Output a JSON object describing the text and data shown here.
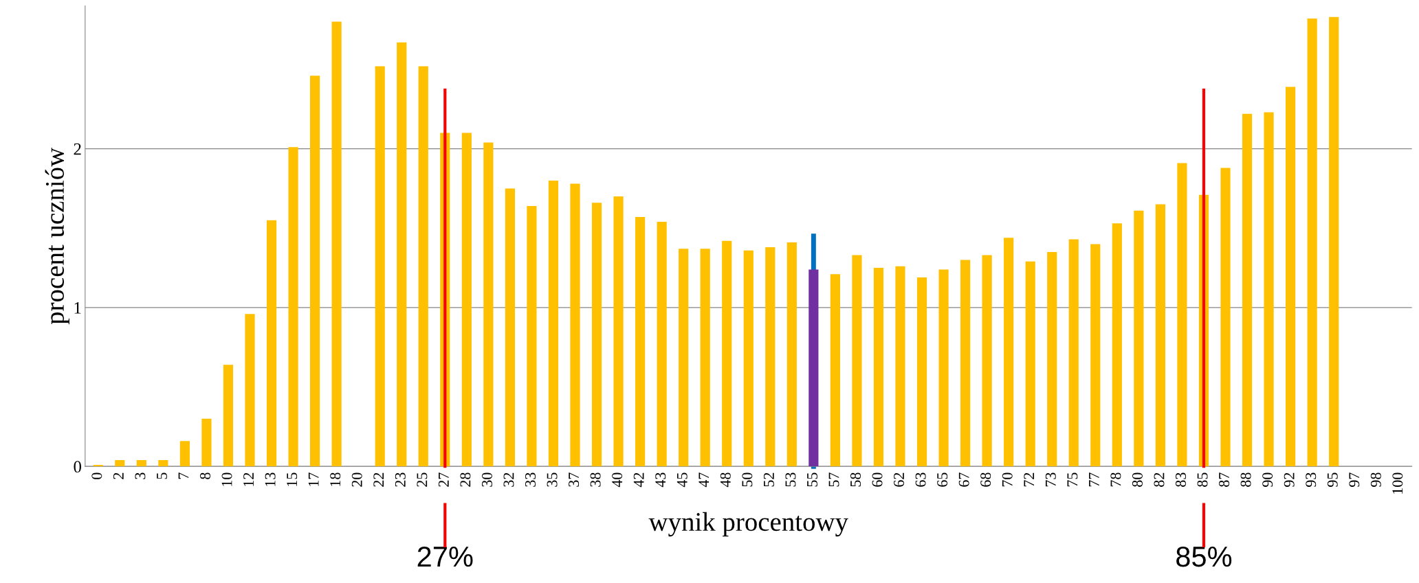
{
  "chart_data": {
    "type": "bar",
    "xlabel": "wynik procentowy",
    "ylabel": "procent uczniów",
    "categories": [
      "0",
      "2",
      "3",
      "5",
      "7",
      "8",
      "10",
      "12",
      "13",
      "15",
      "17",
      "18",
      "20",
      "22",
      "23",
      "25",
      "27",
      "28",
      "30",
      "32",
      "33",
      "35",
      "37",
      "38",
      "40",
      "42",
      "43",
      "45",
      "47",
      "48",
      "50",
      "52",
      "53",
      "55",
      "57",
      "58",
      "60",
      "62",
      "63",
      "65",
      "67",
      "68",
      "70",
      "72",
      "73",
      "75",
      "77",
      "78",
      "80",
      "82",
      "83",
      "85",
      "87",
      "88",
      "90",
      "92",
      "93",
      "95",
      "97",
      "98",
      "100"
    ],
    "values": [
      0.01,
      0.04,
      0.04,
      0.04,
      0.16,
      0.3,
      0.64,
      0.96,
      1.55,
      2.01,
      2.46,
      2.8,
      null,
      2.52,
      2.67,
      2.52,
      2.1,
      2.1,
      2.04,
      1.75,
      1.64,
      1.8,
      1.78,
      1.66,
      1.7,
      1.57,
      1.54,
      1.37,
      1.37,
      1.42,
      1.36,
      1.38,
      1.41,
      1.24,
      1.21,
      1.33,
      1.25,
      1.26,
      1.19,
      1.24,
      1.3,
      1.33,
      1.44,
      1.29,
      1.35,
      1.43,
      1.4,
      1.53,
      1.61,
      1.65,
      1.91,
      1.71,
      1.88,
      2.22,
      2.23,
      2.39,
      2.82,
      2.83,
      null,
      null,
      null
    ],
    "colors": [
      "#ffc000",
      "#ffc000",
      "#ffc000",
      "#ffc000",
      "#ffc000",
      "#ffc000",
      "#ffc000",
      "#ffc000",
      "#ffc000",
      "#ffc000",
      "#ffc000",
      "#ffc000",
      "#ffc000",
      "#ffc000",
      "#ffc000",
      "#ffc000",
      "#ffc000",
      "#ffc000",
      "#ffc000",
      "#ffc000",
      "#ffc000",
      "#ffc000",
      "#ffc000",
      "#ffc000",
      "#ffc000",
      "#ffc000",
      "#ffc000",
      "#ffc000",
      "#ffc000",
      "#ffc000",
      "#ffc000",
      "#ffc000",
      "#ffc000",
      "#7030a0",
      "#ffc000",
      "#ffc000",
      "#ffc000",
      "#ffc000",
      "#ffc000",
      "#ffc000",
      "#ffc000",
      "#ffc000",
      "#ffc000",
      "#ffc000",
      "#ffc000",
      "#ffc000",
      "#ffc000",
      "#ffc000",
      "#ffc000",
      "#ffc000",
      "#ffc000",
      "#ffc000",
      "#ffc000",
      "#ffc000",
      "#ffc000",
      "#ffc000",
      "#ffc000",
      "#ffc000",
      "#ffc000",
      "#c55a11",
      "#ffc000"
    ],
    "ylim": [
      0,
      2.9
    ],
    "yticks": [
      0,
      1,
      2
    ],
    "grid": "y",
    "ref_lines": [
      {
        "axis": "x",
        "value": "27",
        "label": "27%",
        "color": "#ff0000"
      },
      {
        "axis": "x",
        "value": "85",
        "label": "85%",
        "color": "#ff0000"
      },
      {
        "axis": "x",
        "value": "55",
        "label": null,
        "color": "#0070c0"
      }
    ]
  }
}
